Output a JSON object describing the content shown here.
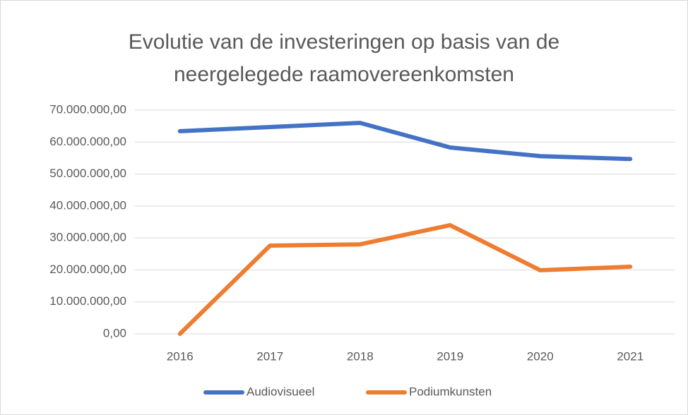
{
  "chart_data": {
    "type": "line",
    "title": "Evolutie van de investeringen op basis van de neergelegede raamovereenkomsten",
    "categories": [
      "2016",
      "2017",
      "2018",
      "2019",
      "2020",
      "2021"
    ],
    "series": [
      {
        "name": "Audiovisueel",
        "color": "#4472c4",
        "values": [
          63400000,
          64700000,
          66000000,
          58300000,
          55600000,
          54700000
        ]
      },
      {
        "name": "Podiumkunsten",
        "color": "#ed7d31",
        "values": [
          0,
          27600000,
          28000000,
          34000000,
          19900000,
          21000000
        ]
      }
    ],
    "ylim": [
      0,
      70000000
    ],
    "yticks": [
      {
        "value": 0,
        "label": "0,00"
      },
      {
        "value": 10000000,
        "label": "10.000.000,00"
      },
      {
        "value": 20000000,
        "label": "20.000.000,00"
      },
      {
        "value": 30000000,
        "label": "30.000.000,00"
      },
      {
        "value": 40000000,
        "label": "40.000.000,00"
      },
      {
        "value": 50000000,
        "label": "50.000.000,00"
      },
      {
        "value": 60000000,
        "label": "60.000.000,00"
      },
      {
        "value": 70000000,
        "label": "70.000.000,00"
      }
    ],
    "grid": true,
    "legend": "bottom"
  }
}
